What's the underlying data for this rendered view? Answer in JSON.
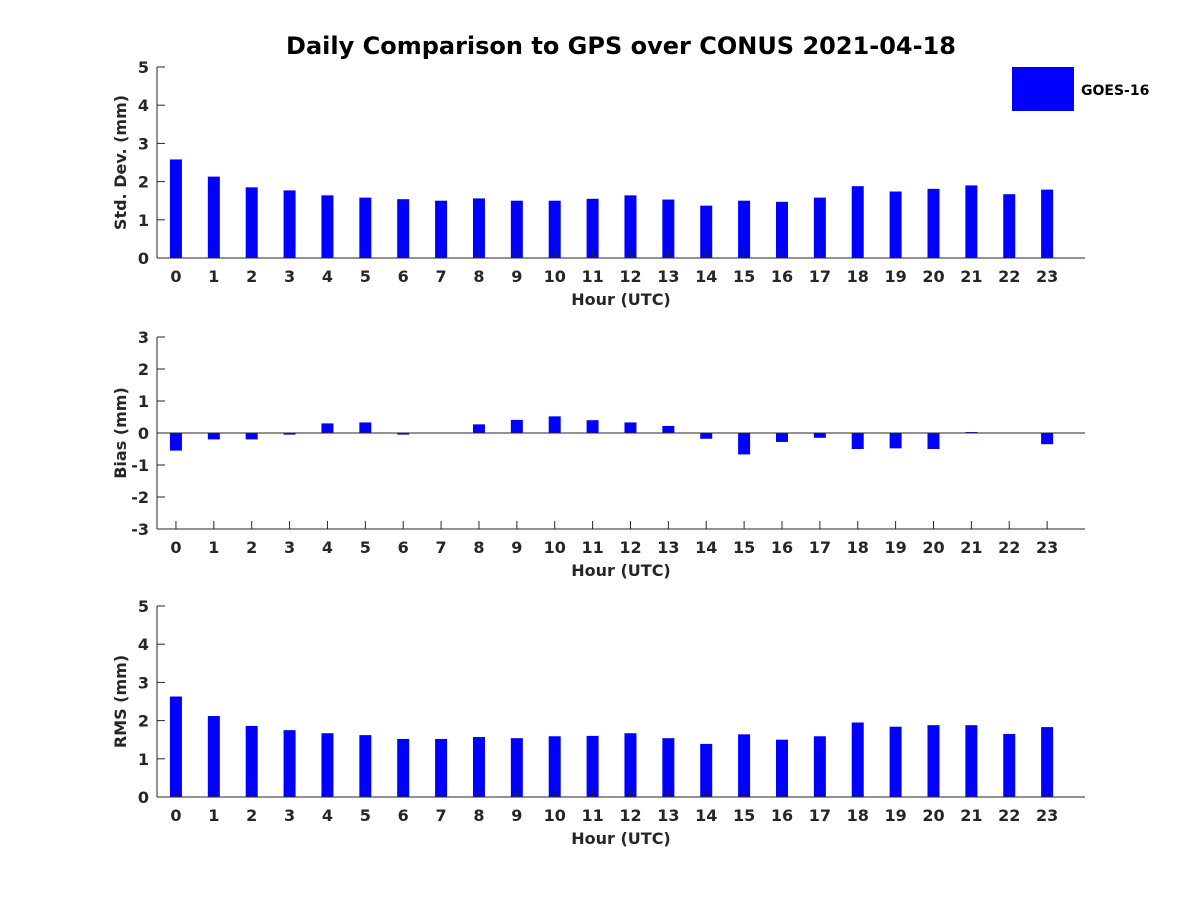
{
  "title": "Daily Comparison to GPS over CONUS 2021-04-18",
  "legend": {
    "label": "GOES-16",
    "color": "#0000ff",
    "placement": "top-right"
  },
  "chart_data": [
    {
      "type": "bar",
      "categories": [
        "0",
        "1",
        "2",
        "3",
        "4",
        "5",
        "6",
        "7",
        "8",
        "9",
        "10",
        "11",
        "12",
        "13",
        "14",
        "15",
        "16",
        "17",
        "18",
        "19",
        "20",
        "21",
        "22",
        "23"
      ],
      "series": [
        {
          "name": "GOES-16",
          "values": [
            2.58,
            2.13,
            1.85,
            1.77,
            1.64,
            1.58,
            1.54,
            1.5,
            1.56,
            1.5,
            1.5,
            1.55,
            1.64,
            1.53,
            1.37,
            1.5,
            1.47,
            1.58,
            1.88,
            1.74,
            1.81,
            1.9,
            1.67,
            1.79
          ]
        }
      ],
      "title": "Daily Comparison to GPS over CONUS 2021-04-18",
      "xlabel": "Hour (UTC)",
      "ylabel": "Std. Dev. (mm)",
      "ylim": [
        0,
        5
      ],
      "yticks": [
        "0",
        "1",
        "2",
        "3",
        "4",
        "5"
      ],
      "color": "#0000ff",
      "grid": false
    },
    {
      "type": "bar",
      "categories": [
        "0",
        "1",
        "2",
        "3",
        "4",
        "5",
        "6",
        "7",
        "8",
        "9",
        "10",
        "11",
        "12",
        "13",
        "14",
        "15",
        "16",
        "17",
        "18",
        "19",
        "20",
        "21",
        "22",
        "23"
      ],
      "series": [
        {
          "name": "GOES-16",
          "values": [
            -0.55,
            -0.2,
            -0.2,
            -0.05,
            0.3,
            0.33,
            -0.05,
            0.0,
            0.27,
            0.41,
            0.52,
            0.4,
            0.33,
            0.22,
            -0.18,
            -0.67,
            -0.28,
            -0.15,
            -0.5,
            -0.48,
            -0.5,
            0.03,
            0.0,
            -0.35
          ]
        }
      ],
      "xlabel": "Hour (UTC)",
      "ylabel": "Bias (mm)",
      "ylim": [
        -3,
        3
      ],
      "yticks": [
        "-3",
        "-2",
        "-1",
        "0",
        "1",
        "2",
        "3"
      ],
      "color": "#0000ff",
      "grid": false
    },
    {
      "type": "bar",
      "categories": [
        "0",
        "1",
        "2",
        "3",
        "4",
        "5",
        "6",
        "7",
        "8",
        "9",
        "10",
        "11",
        "12",
        "13",
        "14",
        "15",
        "16",
        "17",
        "18",
        "19",
        "20",
        "21",
        "22",
        "23"
      ],
      "series": [
        {
          "name": "GOES-16",
          "values": [
            2.63,
            2.12,
            1.86,
            1.75,
            1.67,
            1.62,
            1.52,
            1.52,
            1.57,
            1.54,
            1.59,
            1.6,
            1.67,
            1.54,
            1.39,
            1.64,
            1.5,
            1.59,
            1.95,
            1.84,
            1.88,
            1.88,
            1.65,
            1.83
          ]
        }
      ],
      "xlabel": "Hour (UTC)",
      "ylabel": "RMS (mm)",
      "ylim": [
        0,
        5
      ],
      "yticks": [
        "0",
        "1",
        "2",
        "3",
        "4",
        "5"
      ],
      "color": "#0000ff",
      "grid": false
    }
  ]
}
